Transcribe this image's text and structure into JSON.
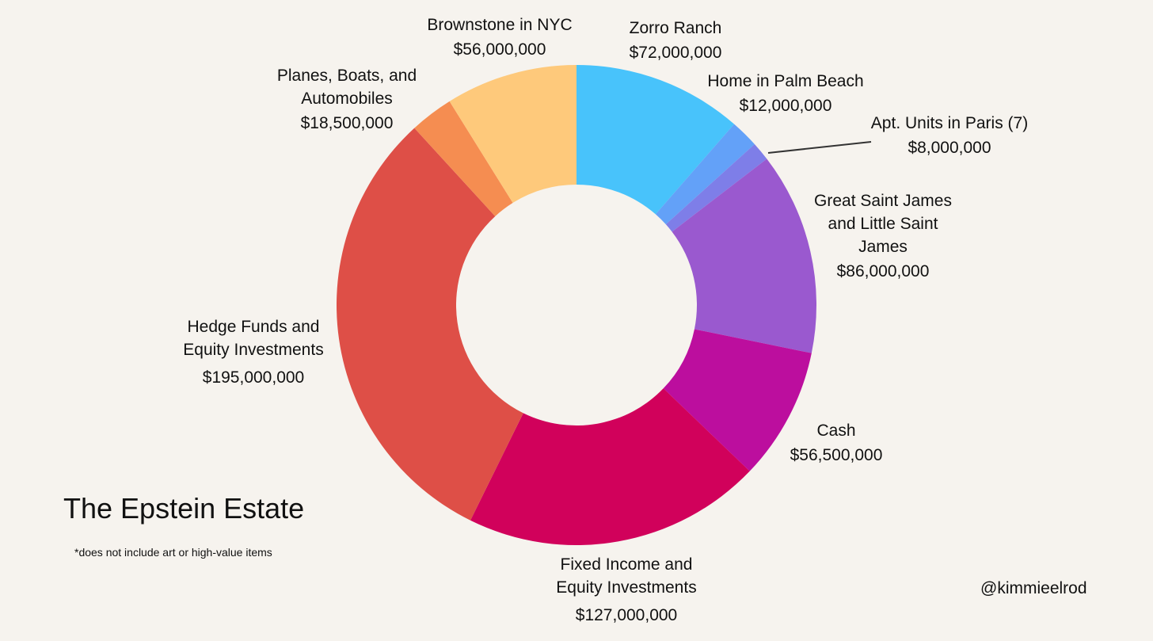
{
  "chart_data": {
    "type": "pie",
    "title": "The Epstein Estate",
    "footnote": "*does not include art or high-value items",
    "credit": "@kimmieelrod",
    "slices": [
      {
        "id": "zorro-ranch",
        "label": "Zorro Ranch",
        "value": 72000000,
        "value_text": "$72,000,000",
        "color": "#48c3fb"
      },
      {
        "id": "palm-beach",
        "label": "Home in Palm Beach",
        "value": 12000000,
        "value_text": "$12,000,000",
        "color": "#63a1f8"
      },
      {
        "id": "paris",
        "label": "Apt. Units in Paris (7)",
        "value": 8000000,
        "value_text": "$8,000,000",
        "color": "#7e7ee8"
      },
      {
        "id": "saint-james",
        "label": "Great Saint James and Little Saint James",
        "value": 86000000,
        "value_text": "$86,000,000",
        "color": "#9a59cf"
      },
      {
        "id": "cash",
        "label": "Cash",
        "value": 56500000,
        "value_text": "$56,500,000",
        "color": "#bc0e9e"
      },
      {
        "id": "fixed-income",
        "label": "Fixed Income and Equity Investments",
        "value": 127000000,
        "value_text": "$127,000,000",
        "color": "#d1015b"
      },
      {
        "id": "hedge-funds",
        "label": "Hedge Funds and Equity Investments",
        "value": 195000000,
        "value_text": "$195,000,000",
        "color": "#de4f47"
      },
      {
        "id": "planes-boats",
        "label": "Planes, Boats, and Automobiles",
        "value": 18500000,
        "value_text": "$18,500,000",
        "color": "#f58d51"
      },
      {
        "id": "brownstone",
        "label": "Brownstone in NYC",
        "value": 56000000,
        "value_text": "$56,000,000",
        "color": "#fec97b"
      }
    ]
  }
}
